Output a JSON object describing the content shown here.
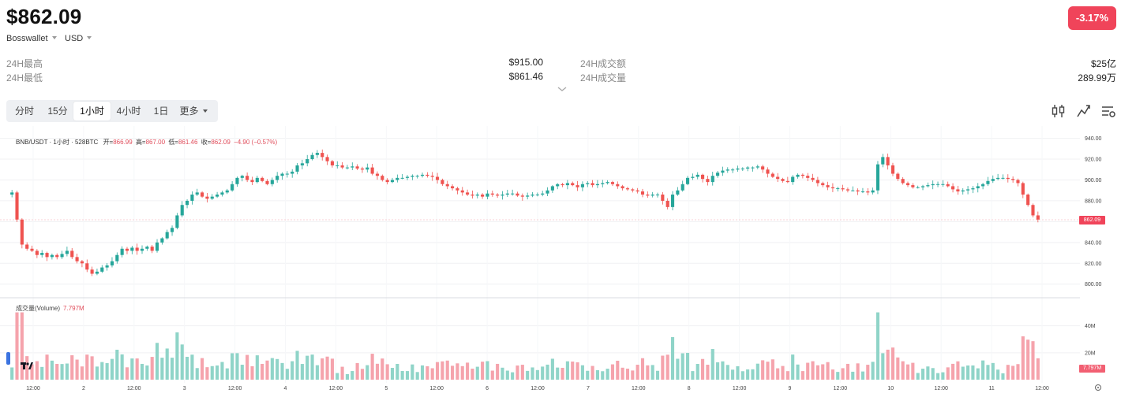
{
  "header": {
    "price": "$862.09",
    "wallet": "Bosswallet",
    "currency": "USD",
    "change": "-3.17%"
  },
  "stats": {
    "high_label": "24H最高",
    "high_value": "$915.00",
    "low_label": "24H最低",
    "low_value": "$861.46",
    "turnover_label": "24H成交额",
    "turnover_value": "$25亿",
    "volume_label": "24H成交量",
    "volume_value": "289.99万"
  },
  "tabs": [
    {
      "label": "分时",
      "active": false
    },
    {
      "label": "15分",
      "active": false
    },
    {
      "label": "1小时",
      "active": true
    },
    {
      "label": "4小时",
      "active": false
    },
    {
      "label": "1日",
      "active": false
    },
    {
      "label": "更多",
      "active": false
    }
  ],
  "toolbar": {
    "icons": [
      "candlestick-settings-icon",
      "indicator-icon",
      "chart-settings-icon"
    ]
  },
  "legend": {
    "pair": "BNB/USDT · 1小时 · 528BTC",
    "open_label": "开=",
    "open": "866.99",
    "high_label": "高=",
    "high": "867.00",
    "low_label": "低=",
    "low": "861.46",
    "close_label": "收=",
    "close": "862.09",
    "delta": "−4.90 (−0.57%)"
  },
  "volume_legend": {
    "label": "成交量(Volume)",
    "value": "7.797M"
  },
  "price_tag": "862.09",
  "volume_tag": "7.797M",
  "colors": {
    "up": "#26a69a",
    "down": "#ef5350",
    "up_vol": "#8fd4c8",
    "down_vol": "#f5a3ac",
    "accent_red": "#f0445a"
  },
  "chart_data": {
    "type": "candlestick",
    "price_axis": [
      "940.00",
      "920.00",
      "900.00",
      "880.00",
      "860.00",
      "840.00",
      "820.00",
      "800.00"
    ],
    "price_ylim": [
      793,
      948
    ],
    "volume_axis": [
      "40M",
      "20M"
    ],
    "volume_ylim": [
      0,
      55
    ],
    "time_axis": [
      "12:00",
      "2",
      "12:00",
      "3",
      "12:00",
      "4",
      "12:00",
      "5",
      "12:00",
      "6",
      "12:00",
      "7",
      "12:00",
      "8",
      "12:00",
      "9",
      "12:00",
      "10",
      "12:00",
      "11",
      "12:00"
    ],
    "series": {
      "close": [
        888,
        862,
        838,
        834,
        832,
        828,
        830,
        826,
        828,
        826,
        829,
        832,
        826,
        822,
        820,
        814,
        810,
        812,
        816,
        818,
        822,
        828,
        834,
        832,
        835,
        832,
        834,
        836,
        832,
        840,
        844,
        850,
        854,
        866,
        876,
        880,
        886,
        888,
        884,
        882,
        884,
        886,
        888,
        890,
        896,
        902,
        904,
        900,
        898,
        902,
        899,
        896,
        900,
        904,
        906,
        906,
        908,
        914,
        916,
        920,
        924,
        926,
        922,
        918,
        914,
        914,
        912,
        912,
        913,
        911,
        910,
        912,
        906,
        904,
        900,
        898,
        900,
        902,
        902,
        903,
        904,
        904,
        905,
        904,
        903,
        900,
        896,
        894,
        892,
        890,
        888,
        886,
        885,
        886,
        884,
        887,
        886,
        885,
        886,
        887,
        887,
        885,
        884,
        885,
        886,
        886,
        887,
        890,
        894,
        896,
        895,
        897,
        895,
        893,
        896,
        897,
        895,
        896,
        897,
        898,
        896,
        894,
        892,
        891,
        890,
        889,
        886,
        885,
        886,
        886,
        880,
        874,
        886,
        890,
        896,
        902,
        903,
        905,
        901,
        898,
        904,
        907,
        909,
        910,
        910,
        911,
        911,
        912,
        912,
        913,
        910,
        906,
        903,
        901,
        899,
        898,
        903,
        905,
        904,
        902,
        900,
        897,
        895,
        893,
        892,
        892,
        891,
        890,
        890,
        889,
        889,
        888,
        890,
        915,
        922,
        914,
        906,
        901,
        897,
        895,
        893,
        893,
        894,
        895,
        896,
        896,
        896,
        894,
        891,
        889,
        890,
        891,
        892,
        894,
        896,
        899,
        901,
        902,
        902,
        901,
        900,
        897,
        886,
        876,
        866,
        862
      ]
    }
  }
}
